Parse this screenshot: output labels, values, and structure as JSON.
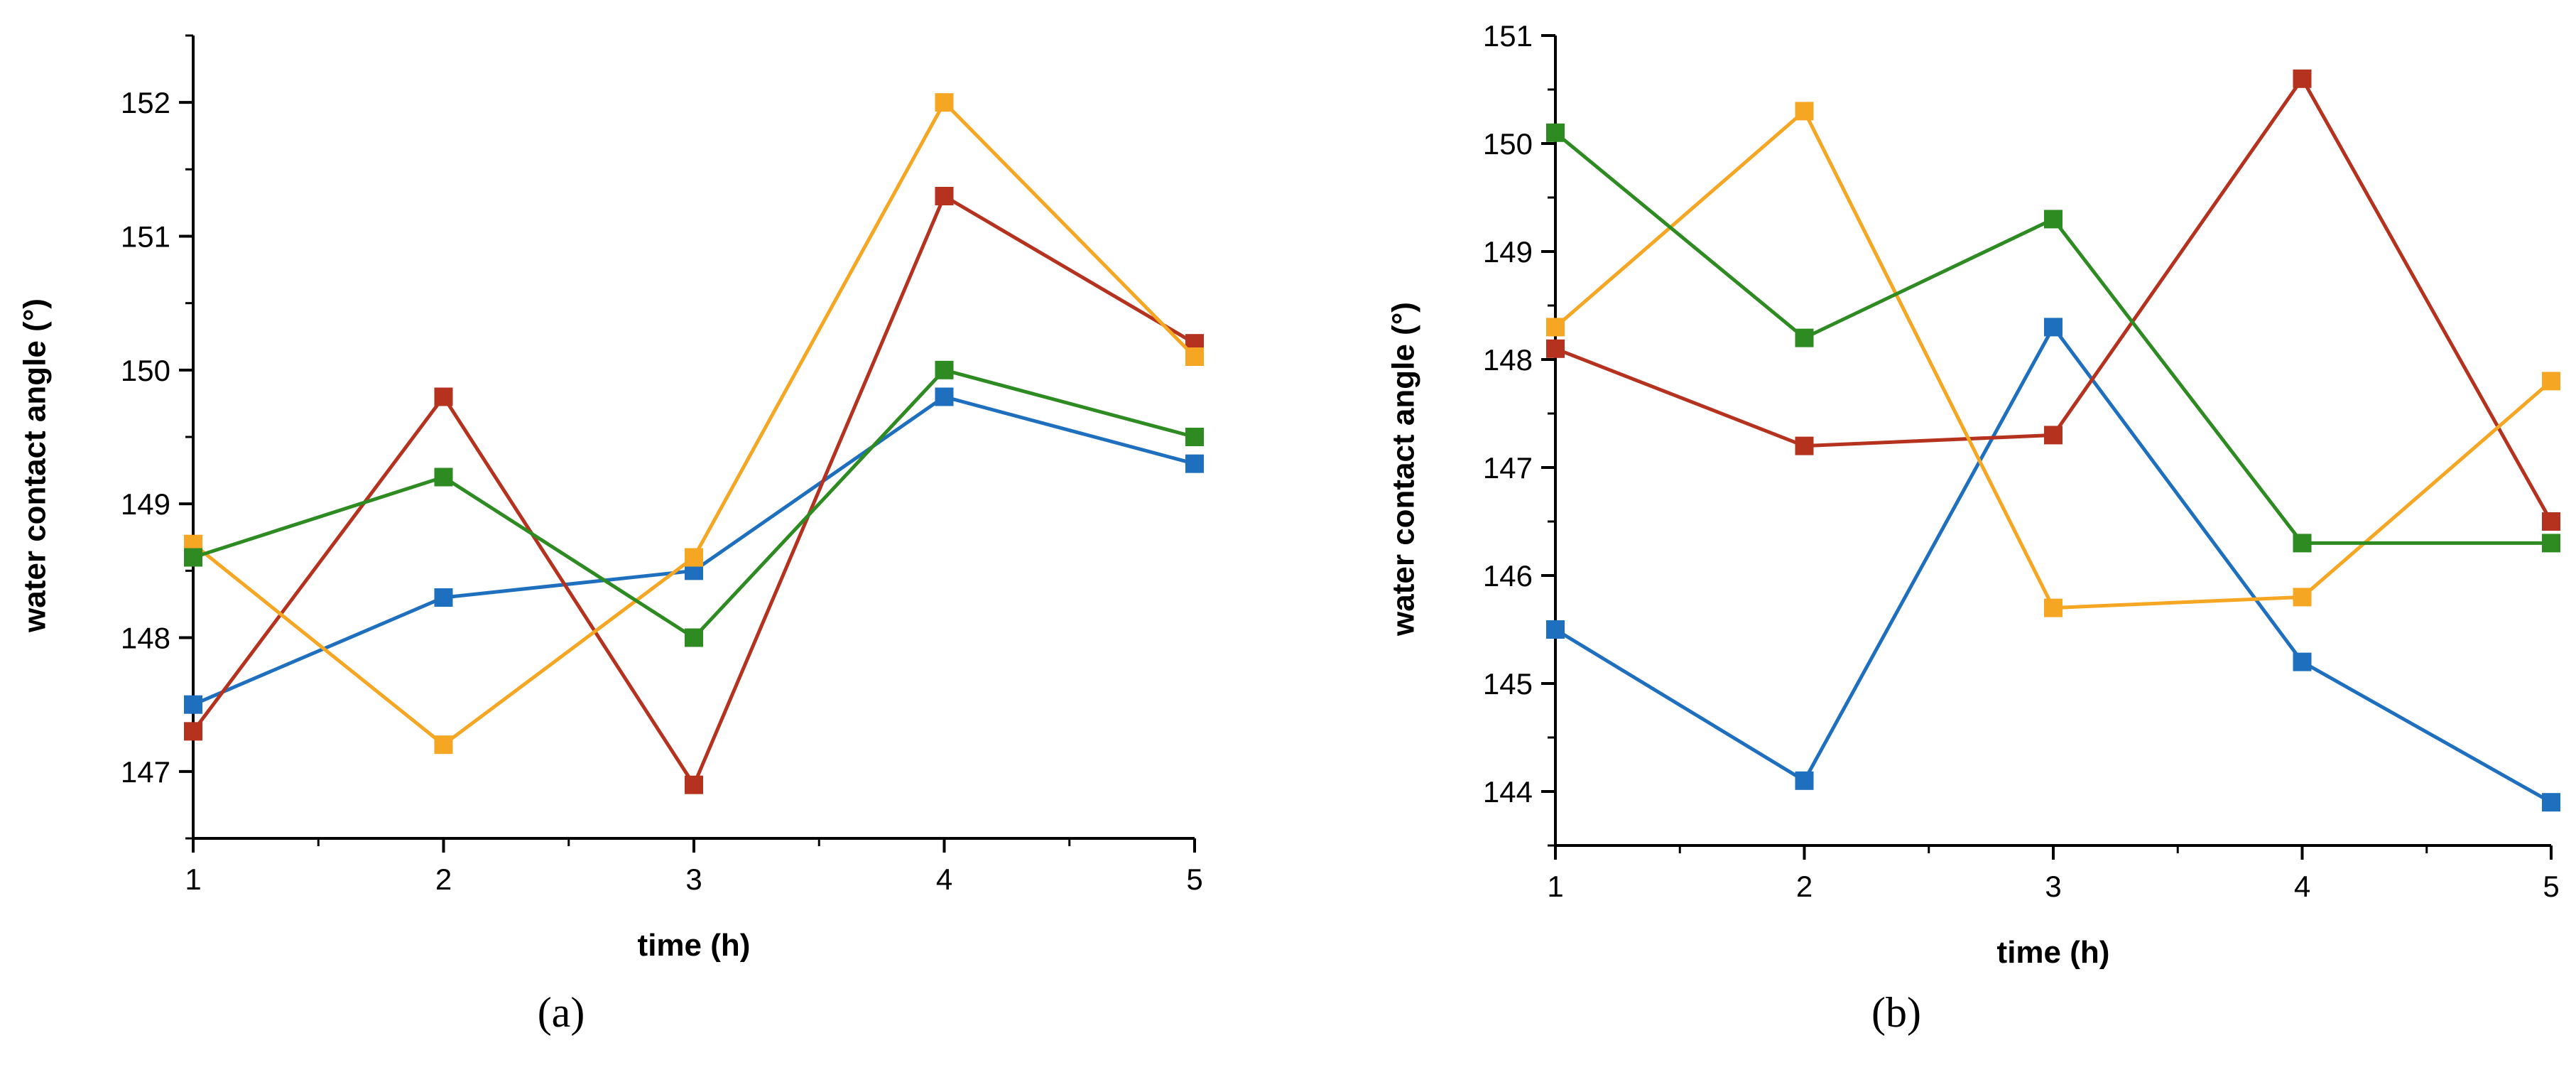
{
  "chart_data": [
    {
      "type": "line",
      "panel_label": "(a)",
      "xlabel": "time (h)",
      "ylabel": "water contact angle (°)",
      "x": [
        1,
        2,
        3,
        4,
        5
      ],
      "xlim": [
        1,
        5
      ],
      "ylim": [
        146.5,
        152.5
      ],
      "xticks": [
        1,
        2,
        3,
        4,
        5
      ],
      "yticks": [
        147,
        148,
        149,
        150,
        151,
        152
      ],
      "grid": false,
      "series": [
        {
          "name": "blue",
          "color": "#1f6fbf",
          "values": [
            147.5,
            148.3,
            148.5,
            149.8,
            149.3
          ]
        },
        {
          "name": "red",
          "color": "#b5321f",
          "values": [
            147.3,
            149.8,
            146.9,
            151.3,
            150.2
          ]
        },
        {
          "name": "orange",
          "color": "#f5a623",
          "values": [
            148.7,
            147.2,
            148.6,
            152.0,
            150.1
          ]
        },
        {
          "name": "green",
          "color": "#2e8b22",
          "values": [
            148.6,
            149.2,
            148.0,
            150.0,
            149.5
          ]
        }
      ]
    },
    {
      "type": "line",
      "panel_label": "(b)",
      "xlabel": "time (h)",
      "ylabel": "water contact angle (°)",
      "x": [
        1,
        2,
        3,
        4,
        5
      ],
      "xlim": [
        1,
        5
      ],
      "ylim": [
        143.5,
        151.0
      ],
      "xticks": [
        1,
        2,
        3,
        4,
        5
      ],
      "yticks": [
        144,
        145,
        146,
        147,
        148,
        149,
        150,
        151
      ],
      "grid": false,
      "series": [
        {
          "name": "blue",
          "color": "#1f6fbf",
          "values": [
            145.5,
            144.1,
            148.3,
            145.2,
            143.9
          ]
        },
        {
          "name": "red",
          "color": "#b5321f",
          "values": [
            148.1,
            147.2,
            147.3,
            150.6,
            146.5
          ]
        },
        {
          "name": "orange",
          "color": "#f5a623",
          "values": [
            148.3,
            150.3,
            145.7,
            145.8,
            147.8
          ]
        },
        {
          "name": "green",
          "color": "#2e8b22",
          "values": [
            150.1,
            148.2,
            149.3,
            146.3,
            146.3
          ]
        }
      ]
    }
  ]
}
